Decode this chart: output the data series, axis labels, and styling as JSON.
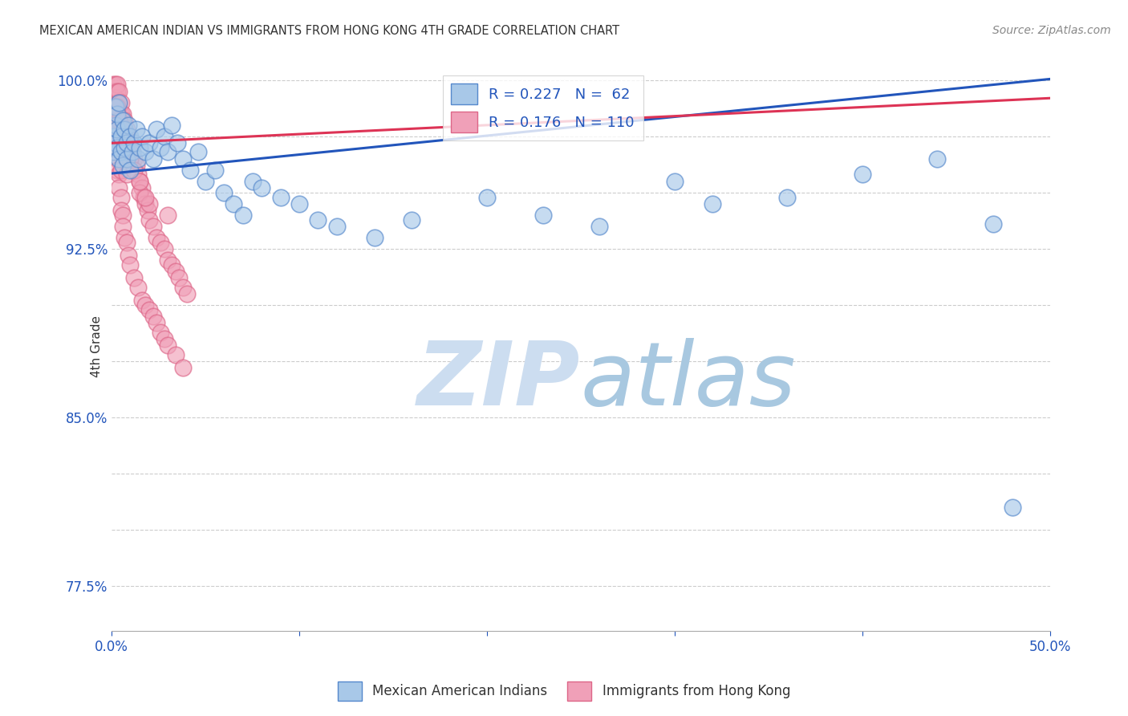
{
  "title": "MEXICAN AMERICAN INDIAN VS IMMIGRANTS FROM HONG KONG 4TH GRADE CORRELATION CHART",
  "source": "Source: ZipAtlas.com",
  "ylabel": "4th Grade",
  "x_min": 0.0,
  "x_max": 0.5,
  "y_min": 0.755,
  "y_max": 1.008,
  "blue_R": 0.227,
  "blue_N": 62,
  "pink_R": 0.176,
  "pink_N": 110,
  "legend_label_blue": "Mexican American Indians",
  "legend_label_pink": "Immigrants from Hong Kong",
  "blue_color": "#a8c8e8",
  "pink_color": "#f0a0b8",
  "blue_line_color": "#2255bb",
  "pink_line_color": "#dd3355",
  "watermark_zip": "ZIP",
  "watermark_atlas": "atlas",
  "watermark_color": "#ccddf0",
  "background_color": "#ffffff",
  "blue_trend": [
    0.0,
    0.9585,
    0.5,
    1.0005
  ],
  "pink_trend": [
    0.0,
    0.972,
    0.5,
    0.992
  ],
  "blue_scatter_x": [
    0.001,
    0.001,
    0.002,
    0.002,
    0.002,
    0.003,
    0.003,
    0.003,
    0.004,
    0.004,
    0.005,
    0.005,
    0.006,
    0.006,
    0.007,
    0.007,
    0.008,
    0.008,
    0.009,
    0.01,
    0.01,
    0.011,
    0.012,
    0.013,
    0.014,
    0.015,
    0.016,
    0.018,
    0.02,
    0.022,
    0.024,
    0.026,
    0.028,
    0.03,
    0.032,
    0.035,
    0.038,
    0.042,
    0.046,
    0.05,
    0.055,
    0.06,
    0.065,
    0.07,
    0.075,
    0.08,
    0.09,
    0.1,
    0.11,
    0.12,
    0.14,
    0.16,
    0.2,
    0.23,
    0.26,
    0.3,
    0.32,
    0.36,
    0.4,
    0.44,
    0.47,
    0.48
  ],
  "blue_scatter_y": [
    0.968,
    0.975,
    0.972,
    0.98,
    0.988,
    0.97,
    0.978,
    0.985,
    0.965,
    0.99,
    0.968,
    0.975,
    0.962,
    0.982,
    0.97,
    0.978,
    0.965,
    0.972,
    0.98,
    0.96,
    0.975,
    0.968,
    0.972,
    0.978,
    0.965,
    0.97,
    0.975,
    0.968,
    0.972,
    0.965,
    0.978,
    0.97,
    0.975,
    0.968,
    0.98,
    0.972,
    0.965,
    0.96,
    0.968,
    0.955,
    0.96,
    0.95,
    0.945,
    0.94,
    0.955,
    0.952,
    0.948,
    0.945,
    0.938,
    0.935,
    0.93,
    0.938,
    0.948,
    0.94,
    0.935,
    0.955,
    0.945,
    0.948,
    0.958,
    0.965,
    0.936,
    0.81
  ],
  "pink_scatter_x": [
    0.001,
    0.001,
    0.001,
    0.001,
    0.001,
    0.001,
    0.001,
    0.001,
    0.002,
    0.002,
    0.002,
    0.002,
    0.002,
    0.002,
    0.002,
    0.003,
    0.003,
    0.003,
    0.003,
    0.003,
    0.003,
    0.003,
    0.004,
    0.004,
    0.004,
    0.004,
    0.004,
    0.004,
    0.005,
    0.005,
    0.005,
    0.005,
    0.005,
    0.006,
    0.006,
    0.006,
    0.006,
    0.007,
    0.007,
    0.007,
    0.007,
    0.008,
    0.008,
    0.008,
    0.009,
    0.009,
    0.009,
    0.01,
    0.01,
    0.01,
    0.011,
    0.012,
    0.013,
    0.014,
    0.015,
    0.016,
    0.017,
    0.018,
    0.019,
    0.02,
    0.022,
    0.024,
    0.026,
    0.028,
    0.03,
    0.032,
    0.034,
    0.036,
    0.038,
    0.04,
    0.001,
    0.002,
    0.002,
    0.003,
    0.003,
    0.004,
    0.004,
    0.005,
    0.005,
    0.006,
    0.006,
    0.007,
    0.008,
    0.009,
    0.01,
    0.012,
    0.014,
    0.016,
    0.018,
    0.02,
    0.022,
    0.024,
    0.026,
    0.028,
    0.03,
    0.034,
    0.038,
    0.005,
    0.008,
    0.015,
    0.02,
    0.03,
    0.003,
    0.004,
    0.006,
    0.008,
    0.01,
    0.012,
    0.015,
    0.018
  ],
  "pink_scatter_y": [
    0.998,
    0.995,
    0.992,
    0.988,
    0.985,
    0.982,
    0.978,
    0.975,
    0.998,
    0.995,
    0.992,
    0.988,
    0.985,
    0.982,
    0.978,
    0.998,
    0.995,
    0.99,
    0.985,
    0.98,
    0.975,
    0.97,
    0.995,
    0.99,
    0.985,
    0.98,
    0.975,
    0.97,
    0.99,
    0.985,
    0.98,
    0.975,
    0.97,
    0.985,
    0.98,
    0.975,
    0.97,
    0.982,
    0.978,
    0.972,
    0.968,
    0.978,
    0.972,
    0.968,
    0.975,
    0.97,
    0.965,
    0.972,
    0.968,
    0.963,
    0.968,
    0.965,
    0.962,
    0.958,
    0.955,
    0.952,
    0.948,
    0.945,
    0.942,
    0.938,
    0.935,
    0.93,
    0.928,
    0.925,
    0.92,
    0.918,
    0.915,
    0.912,
    0.908,
    0.905,
    0.975,
    0.972,
    0.968,
    0.965,
    0.96,
    0.958,
    0.952,
    0.948,
    0.942,
    0.94,
    0.935,
    0.93,
    0.928,
    0.922,
    0.918,
    0.912,
    0.908,
    0.902,
    0.9,
    0.898,
    0.895,
    0.892,
    0.888,
    0.885,
    0.882,
    0.878,
    0.872,
    0.96,
    0.958,
    0.95,
    0.945,
    0.94,
    0.988,
    0.982,
    0.978,
    0.972,
    0.965,
    0.96,
    0.955,
    0.948
  ]
}
